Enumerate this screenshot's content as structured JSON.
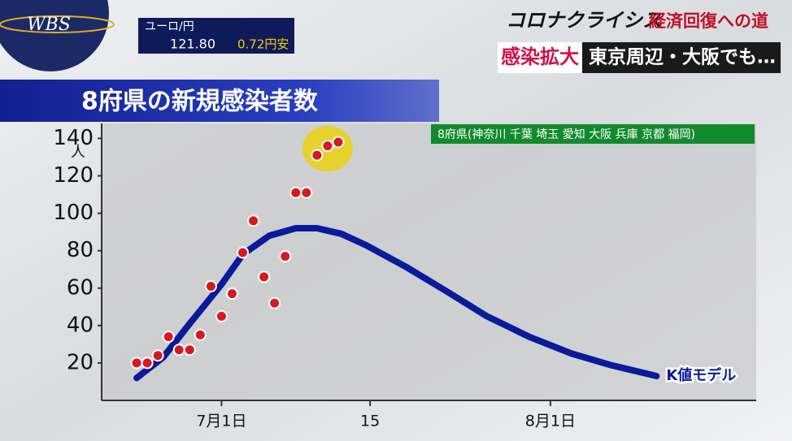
{
  "overlay": {
    "logo": "WBS",
    "fx_pair": "ユーロ/円",
    "fx_rate": "121.80",
    "fx_change": "0.72円安",
    "program": "コロナクライシス",
    "program_sub": "経済回復への道",
    "headline_tag": "感染拡大",
    "headline": "東京周辺・大阪でも…"
  },
  "chart_data": {
    "type": "scatter",
    "title": "8府県の新規感染者数",
    "subtitle": "8府県(神奈川 千葉 埼玉 愛知 大阪 兵庫 京都 福岡)",
    "y_unit": "人",
    "xlim": [
      -10.3,
      51.4
    ],
    "ylim": [
      0,
      148
    ],
    "xticks": [
      {
        "value": 1,
        "label": "7月1日"
      },
      15,
      {
        "value": 32,
        "label": "8月1日"
      }
    ],
    "yticks": [
      20,
      40,
      60,
      80,
      100,
      120,
      140
    ],
    "grid": false,
    "series": [
      {
        "type": "scatter",
        "color": "#d7191f",
        "x": [
          -7,
          -6,
          -5,
          -4,
          -3,
          -2,
          -1,
          0,
          1,
          2,
          3,
          4,
          5,
          6,
          7,
          8,
          9,
          10,
          11,
          12
        ],
        "values": [
          20,
          20,
          24,
          34,
          27,
          27,
          35,
          61,
          45,
          57,
          79,
          96,
          66,
          52,
          77,
          111,
          111,
          131,
          136,
          138
        ]
      },
      {
        "type": "line",
        "name": "K値モデル",
        "color": "#0a1a9a",
        "x": [
          -7,
          -4.5,
          -2,
          1,
          3,
          5.5,
          8,
          10,
          12.3,
          14.6,
          18.5,
          22.3,
          26,
          30,
          34,
          37.6,
          42
        ],
        "values": [
          12,
          23,
          41,
          62,
          78,
          88,
          92,
          92,
          89,
          83,
          71,
          58,
          45,
          34,
          25,
          19,
          13
        ]
      }
    ]
  }
}
